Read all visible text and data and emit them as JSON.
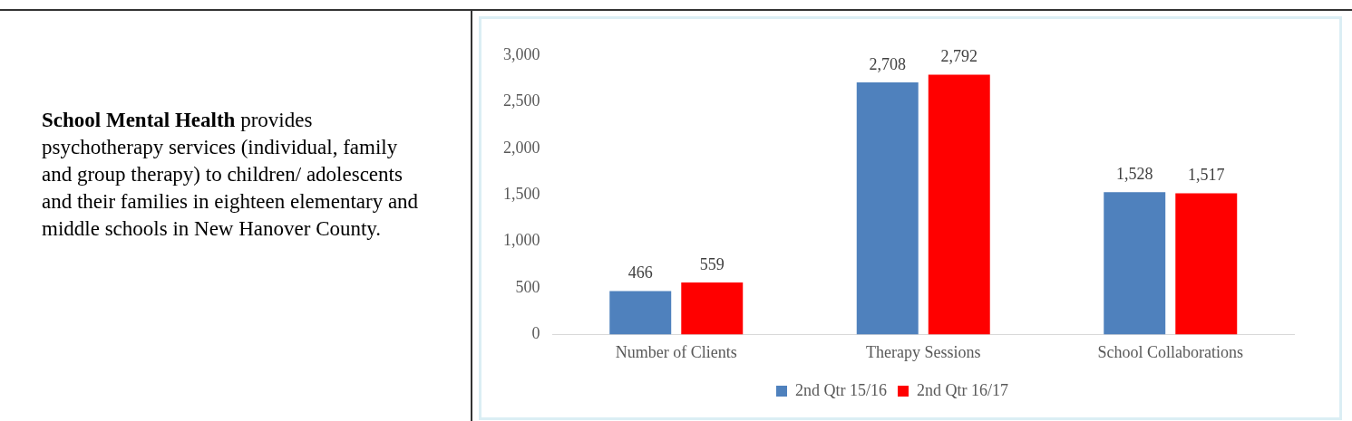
{
  "chart_data": {
    "type": "bar",
    "categories": [
      "Number of Clients",
      "Therapy Sessions",
      "School Collaborations"
    ],
    "series": [
      {
        "name": "2nd Qtr 15/16",
        "color": "#4f81bd",
        "values": [
          466,
          2708,
          1528
        ],
        "value_labels": [
          "466",
          "2,708",
          "1,528"
        ]
      },
      {
        "name": "2nd Qtr 16/17",
        "color": "#ff0000",
        "values": [
          559,
          2792,
          1517
        ],
        "value_labels": [
          "559",
          "2,792",
          "1,517"
        ]
      }
    ],
    "ylim": [
      0,
      3000
    ],
    "yticks": [
      {
        "value": 0,
        "label": "0"
      },
      {
        "value": 500,
        "label": "500"
      },
      {
        "value": 1000,
        "label": "1,000"
      },
      {
        "value": 1500,
        "label": "1,500"
      },
      {
        "value": 2000,
        "label": "2,000"
      },
      {
        "value": 2500,
        "label": "2,500"
      },
      {
        "value": 3000,
        "label": "3,000"
      }
    ],
    "grid": false,
    "legend": "bottom",
    "annotations": [
      "School Mental Health",
      "provides psychotherapy services (individual, family and group therapy) to children/ adolescents and their families in eighteen elementary and middle schools in New Hanover County."
    ]
  }
}
